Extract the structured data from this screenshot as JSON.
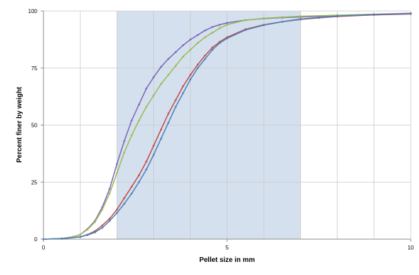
{
  "chart_data": {
    "type": "line",
    "title": "",
    "xlabel": "Pellet size in mm",
    "ylabel": "Percent finer by weight",
    "xlim": [
      0,
      10
    ],
    "ylim": [
      0,
      100
    ],
    "x_ticks": [
      "0",
      "5",
      "10"
    ],
    "y_ticks": [
      "0",
      "25",
      "50",
      "75",
      "100"
    ],
    "x_minor_gridlines": [
      1,
      2,
      3,
      4,
      5,
      6,
      7,
      8,
      9
    ],
    "grid": true,
    "legend": "none",
    "shaded_region": {
      "x": [
        2,
        7
      ],
      "color": "#d5e0ee"
    },
    "series": [
      {
        "color": "#7e6ab8",
        "points": [
          [
            0,
            0
          ],
          [
            0.5,
            0.3
          ],
          [
            0.8,
            1
          ],
          [
            1,
            2
          ],
          [
            1.2,
            4.5
          ],
          [
            1.4,
            8
          ],
          [
            1.6,
            14
          ],
          [
            1.8,
            22
          ],
          [
            2,
            33
          ],
          [
            2.2,
            43
          ],
          [
            2.4,
            52
          ],
          [
            2.6,
            59
          ],
          [
            2.8,
            66
          ],
          [
            3,
            71
          ],
          [
            3.2,
            75.5
          ],
          [
            3.4,
            79
          ],
          [
            3.6,
            82
          ],
          [
            3.8,
            85
          ],
          [
            4,
            87.5
          ],
          [
            4.2,
            89.5
          ],
          [
            4.4,
            91.5
          ],
          [
            4.6,
            93
          ],
          [
            4.8,
            94
          ],
          [
            5,
            94.8
          ],
          [
            5.5,
            96
          ],
          [
            6,
            96.7
          ],
          [
            6.5,
            97.1
          ],
          [
            7,
            97.4
          ],
          [
            8,
            97.9
          ],
          [
            9,
            98.3
          ],
          [
            10,
            98.7
          ]
        ]
      },
      {
        "color": "#9bbb59",
        "points": [
          [
            0,
            0
          ],
          [
            0.5,
            0.3
          ],
          [
            0.8,
            1
          ],
          [
            1,
            2
          ],
          [
            1.2,
            4.2
          ],
          [
            1.4,
            7.5
          ],
          [
            1.6,
            13
          ],
          [
            1.8,
            20
          ],
          [
            2,
            29
          ],
          [
            2.2,
            38
          ],
          [
            2.4,
            45.5
          ],
          [
            2.6,
            52
          ],
          [
            2.8,
            58
          ],
          [
            3,
            63
          ],
          [
            3.2,
            68
          ],
          [
            3.4,
            72
          ],
          [
            3.6,
            76
          ],
          [
            3.8,
            80
          ],
          [
            4,
            83
          ],
          [
            4.2,
            86
          ],
          [
            4.4,
            88.5
          ],
          [
            4.6,
            90.5
          ],
          [
            4.8,
            92.5
          ],
          [
            5,
            94
          ],
          [
            5.5,
            96
          ],
          [
            6,
            96.8
          ],
          [
            6.5,
            97.3
          ],
          [
            7,
            97.7
          ],
          [
            8,
            98.2
          ],
          [
            9,
            98.6
          ],
          [
            10,
            99
          ]
        ]
      },
      {
        "color": "#c0504d",
        "points": [
          [
            0,
            0
          ],
          [
            0.5,
            0.2
          ],
          [
            1,
            1
          ],
          [
            1.2,
            2
          ],
          [
            1.4,
            3.5
          ],
          [
            1.6,
            6
          ],
          [
            1.8,
            9
          ],
          [
            2,
            13
          ],
          [
            2.2,
            18
          ],
          [
            2.4,
            23
          ],
          [
            2.6,
            28
          ],
          [
            2.8,
            34
          ],
          [
            3,
            41
          ],
          [
            3.2,
            48
          ],
          [
            3.4,
            55
          ],
          [
            3.6,
            61
          ],
          [
            3.8,
            67
          ],
          [
            4,
            72
          ],
          [
            4.2,
            76.5
          ],
          [
            4.4,
            80.5
          ],
          [
            4.6,
            84
          ],
          [
            4.8,
            86.5
          ],
          [
            5,
            88.5
          ],
          [
            5.5,
            92
          ],
          [
            6,
            94
          ],
          [
            6.5,
            95.3
          ],
          [
            7,
            96.3
          ],
          [
            7.5,
            97
          ],
          [
            8,
            97.6
          ],
          [
            9,
            98.3
          ],
          [
            10,
            98.8
          ]
        ]
      },
      {
        "color": "#4f81bd",
        "points": [
          [
            0,
            0
          ],
          [
            0.5,
            0.2
          ],
          [
            1,
            1
          ],
          [
            1.2,
            1.8
          ],
          [
            1.4,
            3
          ],
          [
            1.6,
            5
          ],
          [
            1.8,
            8
          ],
          [
            2,
            11.5
          ],
          [
            2.2,
            15.5
          ],
          [
            2.4,
            20
          ],
          [
            2.6,
            25
          ],
          [
            2.8,
            30.5
          ],
          [
            3,
            37
          ],
          [
            3.2,
            44
          ],
          [
            3.4,
            51
          ],
          [
            3.6,
            58
          ],
          [
            3.8,
            64
          ],
          [
            4,
            70
          ],
          [
            4.2,
            75
          ],
          [
            4.4,
            79
          ],
          [
            4.6,
            83
          ],
          [
            4.8,
            86
          ],
          [
            5,
            88
          ],
          [
            5.5,
            91.7
          ],
          [
            6,
            93.8
          ],
          [
            6.5,
            95.3
          ],
          [
            7,
            96.5
          ],
          [
            7.5,
            97.2
          ],
          [
            8,
            97.8
          ],
          [
            9,
            98.5
          ],
          [
            10,
            99
          ]
        ]
      }
    ]
  }
}
